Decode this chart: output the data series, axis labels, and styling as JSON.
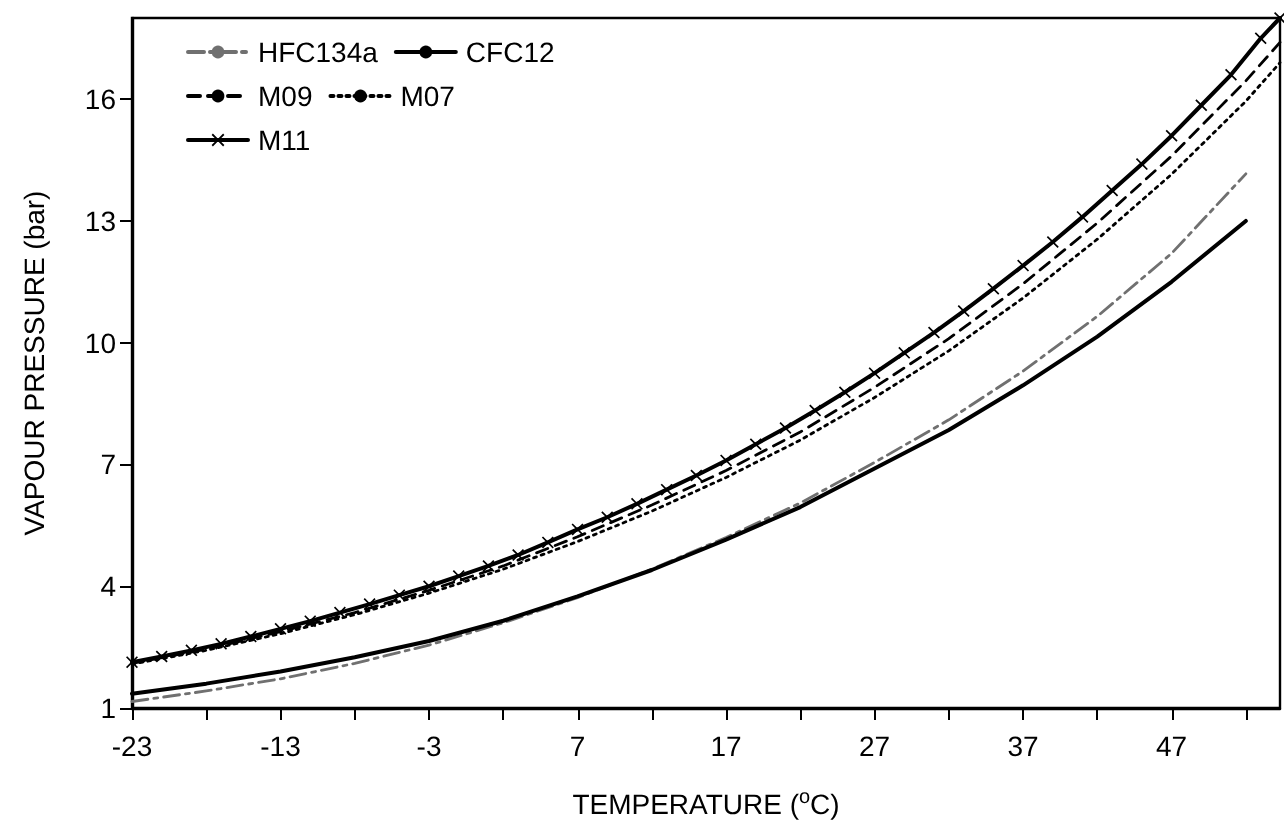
{
  "chart_data": {
    "type": "line",
    "xlabel": "TEMPERATURE ($^{o}$C)",
    "ylabel": "VAPOUR PRESSURE (bar)",
    "xlim": [
      -23,
      54.3
    ],
    "ylim": [
      1,
      18
    ],
    "xticks": [
      -23,
      {
        "value": -18,
        "label": null
      },
      -13,
      {
        "value": -8,
        "label": null
      },
      -3,
      {
        "value": 2,
        "label": null
      },
      7,
      {
        "value": 12,
        "label": null
      },
      17,
      {
        "value": 22,
        "label": null
      },
      27,
      {
        "value": 32,
        "label": null
      },
      37,
      {
        "value": 42,
        "label": null
      },
      47,
      {
        "value": 52,
        "label": null
      }
    ],
    "yticks": [
      1,
      4,
      7,
      10,
      13,
      16
    ],
    "grid": false,
    "legend": "top left",
    "series": [
      {
        "name": "HFC134a",
        "color": "#707070",
        "line_style": "dashdot",
        "marker": "none",
        "x": [
          -23,
          -18,
          -13,
          -8,
          -3,
          2,
          7,
          12,
          17,
          22,
          27,
          32,
          37,
          42,
          47,
          52
        ],
        "values": [
          1.16,
          1.42,
          1.72,
          2.1,
          2.55,
          3.1,
          3.72,
          4.42,
          5.2,
          6.05,
          7.05,
          8.1,
          9.3,
          10.65,
          12.2,
          14.16
        ]
      },
      {
        "name": "CFC12",
        "color": "#000000",
        "line_style": "solid",
        "marker": "none",
        "x": [
          -23,
          -18,
          -13,
          -8,
          -3,
          2,
          7,
          12,
          17,
          22,
          27,
          32,
          37,
          42,
          47,
          52
        ],
        "values": [
          1.35,
          1.6,
          1.9,
          2.25,
          2.65,
          3.15,
          3.75,
          4.4,
          5.15,
          5.95,
          6.9,
          7.85,
          8.95,
          10.15,
          11.5,
          13.0
        ]
      },
      {
        "name": "M09",
        "color": "#000000",
        "line_style": "dashed",
        "marker": "none",
        "x": [
          -23,
          -18,
          -13,
          -8,
          -3,
          2,
          7,
          12,
          17,
          22,
          27,
          32,
          37,
          42,
          47,
          52,
          54.3
        ],
        "values": [
          2.1,
          2.45,
          2.88,
          3.35,
          3.9,
          4.5,
          5.22,
          6.0,
          6.85,
          7.8,
          8.9,
          10.1,
          11.45,
          12.95,
          14.6,
          16.45,
          17.4
        ]
      },
      {
        "name": "M07",
        "color": "#000000",
        "line_style": "dotted",
        "marker": "none",
        "x": [
          -23,
          -18,
          -13,
          -8,
          -3,
          2,
          7,
          12,
          17,
          22,
          27,
          32,
          37,
          42,
          47,
          52,
          54.3
        ],
        "values": [
          2.08,
          2.42,
          2.83,
          3.3,
          3.83,
          4.42,
          5.1,
          5.85,
          6.68,
          7.6,
          8.65,
          9.8,
          11.1,
          12.55,
          14.15,
          15.95,
          16.9
        ]
      },
      {
        "name": "M11",
        "color": "#000000",
        "line_style": "solid",
        "marker": "cross",
        "x": [
          -23,
          -21,
          -19,
          -17,
          -15,
          -13,
          -11,
          -9,
          -7,
          -5,
          -3,
          -1,
          1,
          3,
          5,
          7,
          9,
          11,
          13,
          15,
          17,
          19,
          21,
          23,
          25,
          27,
          29,
          31,
          33,
          35,
          37,
          39,
          41,
          43,
          45,
          47,
          49,
          51,
          53,
          54.3
        ],
        "values": [
          2.13,
          2.27,
          2.42,
          2.58,
          2.76,
          2.95,
          3.14,
          3.35,
          3.56,
          3.78,
          4.0,
          4.25,
          4.5,
          4.77,
          5.08,
          5.4,
          5.7,
          6.03,
          6.38,
          6.73,
          7.1,
          7.5,
          7.9,
          8.33,
          8.78,
          9.25,
          9.75,
          10.25,
          10.78,
          11.33,
          11.9,
          12.48,
          13.1,
          13.75,
          14.4,
          15.1,
          15.85,
          16.6,
          17.5,
          18.0
        ]
      }
    ]
  }
}
